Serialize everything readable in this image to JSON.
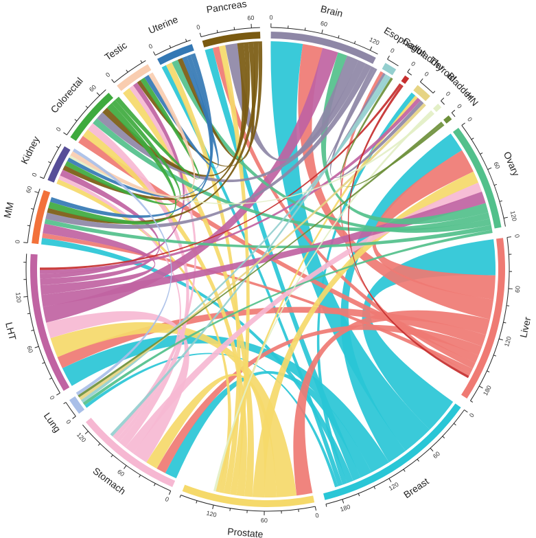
{
  "chart_data": {
    "type": "chord",
    "title": "",
    "tick_step": 20,
    "label_step": 60,
    "sectors": [
      {
        "name": "Pancreas",
        "total": 70,
        "color": "#7a5a10"
      },
      {
        "name": "Brain",
        "total": 130,
        "color": "#8e87a6"
      },
      {
        "name": "Esophagus",
        "total": 15,
        "color": "#94cfcf"
      },
      {
        "name": "Gallbladder",
        "total": 6,
        "color": "#c62e2e"
      },
      {
        "name": "Thyroid",
        "total": 20,
        "color": "#e6d484"
      },
      {
        "name": "Bladder",
        "total": 6,
        "color": "#e3efc6"
      },
      {
        "name": "HN",
        "total": 6,
        "color": "#6d8f3a"
      },
      {
        "name": "Ovary",
        "total": 130,
        "color": "#52c08b"
      },
      {
        "name": "Liver",
        "total": 200,
        "color": "#ef7a73"
      },
      {
        "name": "Breast",
        "total": 200,
        "color": "#29c6d6"
      },
      {
        "name": "Prostate",
        "total": 160,
        "color": "#f5d96a"
      },
      {
        "name": "Stomach",
        "total": 130,
        "color": "#f6b8d2"
      },
      {
        "name": "Lung",
        "total": 20,
        "color": "#a9bfe8"
      },
      {
        "name": "LHT",
        "total": 170,
        "color": "#c063a2"
      },
      {
        "name": "MM",
        "total": 65,
        "color": "#f2713a"
      },
      {
        "name": "Kidney",
        "total": 45,
        "color": "#574e98"
      },
      {
        "name": "Colorectal",
        "total": 70,
        "color": "#3eaa3e"
      },
      {
        "name": "Testic",
        "total": 45,
        "color": "#f9cdb0"
      },
      {
        "name": "Uterine",
        "total": 45,
        "color": "#3478b4"
      }
    ],
    "links": [
      {
        "source": "Breast",
        "target": "Liver",
        "value": 45
      },
      {
        "source": "Breast",
        "target": "Brain",
        "value": 40
      },
      {
        "source": "Breast",
        "target": "Ovary",
        "value": 25
      },
      {
        "source": "Breast",
        "target": "LHT",
        "value": 25
      },
      {
        "source": "Breast",
        "target": "Stomach",
        "value": 15
      },
      {
        "source": "Breast",
        "target": "Pancreas",
        "value": 10
      },
      {
        "source": "Breast",
        "target": "MM",
        "value": 8
      },
      {
        "source": "Breast",
        "target": "Thyroid",
        "value": 6
      },
      {
        "source": "Breast",
        "target": "Uterine",
        "value": 6
      },
      {
        "source": "Breast",
        "target": "Lung",
        "value": 4
      },
      {
        "source": "Liver",
        "target": "Ovary",
        "value": 30
      },
      {
        "source": "Liver",
        "target": "Brain",
        "value": 25
      },
      {
        "source": "Liver",
        "target": "Prostate",
        "value": 20
      },
      {
        "source": "Liver",
        "target": "LHT",
        "value": 15
      },
      {
        "source": "Liver",
        "target": "Stomach",
        "value": 12
      },
      {
        "source": "Liver",
        "target": "Colorectal",
        "value": 10
      },
      {
        "source": "Liver",
        "target": "Pancreas",
        "value": 8
      },
      {
        "source": "Liver",
        "target": "MM",
        "value": 6
      },
      {
        "source": "Liver",
        "target": "Esophagus",
        "value": 4
      },
      {
        "source": "Prostate",
        "target": "LHT",
        "value": 25
      },
      {
        "source": "Prostate",
        "target": "Stomach",
        "value": 15
      },
      {
        "source": "Prostate",
        "target": "Ovary",
        "value": 15
      },
      {
        "source": "Prostate",
        "target": "Testic",
        "value": 10
      },
      {
        "source": "Prostate",
        "target": "Colorectal",
        "value": 10
      },
      {
        "source": "Prostate",
        "target": "Pancreas",
        "value": 8
      },
      {
        "source": "Prostate",
        "target": "Uterine",
        "value": 8
      },
      {
        "source": "Prostate",
        "target": "Kidney",
        "value": 6
      },
      {
        "source": "Prostate",
        "target": "Thyroid",
        "value": 4
      },
      {
        "source": "Stomach",
        "target": "LHT",
        "value": 20
      },
      {
        "source": "Stomach",
        "target": "Ovary",
        "value": 12
      },
      {
        "source": "Stomach",
        "target": "Colorectal",
        "value": 10
      },
      {
        "source": "Stomach",
        "target": "Kidney",
        "value": 5
      },
      {
        "source": "Stomach",
        "target": "Testic",
        "value": 6
      },
      {
        "source": "LHT",
        "target": "Brain",
        "value": 20
      },
      {
        "source": "LHT",
        "target": "Ovary",
        "value": 15
      },
      {
        "source": "LHT",
        "target": "MM",
        "value": 12
      },
      {
        "source": "LHT",
        "target": "Kidney",
        "value": 8
      },
      {
        "source": "LHT",
        "target": "Testic",
        "value": 6
      },
      {
        "source": "LHT",
        "target": "Thyroid",
        "value": 5
      },
      {
        "source": "Ovary",
        "target": "Brain",
        "value": 12
      },
      {
        "source": "Ovary",
        "target": "Colorectal",
        "value": 8
      },
      {
        "source": "Ovary",
        "target": "Uterine",
        "value": 8
      },
      {
        "source": "Ovary",
        "target": "MM",
        "value": 6
      },
      {
        "source": "Ovary",
        "target": "Lung",
        "value": 4
      },
      {
        "source": "Brain",
        "target": "Pancreas",
        "value": 15
      },
      {
        "source": "Brain",
        "target": "Colorectal",
        "value": 10
      },
      {
        "source": "Brain",
        "target": "MM",
        "value": 8
      },
      {
        "source": "Brain",
        "target": "Thyroid",
        "value": 5
      },
      {
        "source": "Brain",
        "target": "Esophagus",
        "value": 3
      },
      {
        "source": "Pancreas",
        "target": "Colorectal",
        "value": 8
      },
      {
        "source": "Pancreas",
        "target": "Kidney",
        "value": 6
      },
      {
        "source": "Pancreas",
        "target": "Uterine",
        "value": 6
      },
      {
        "source": "Pancreas",
        "target": "MM",
        "value": 6
      },
      {
        "source": "Pancreas",
        "target": "Testic",
        "value": 5
      },
      {
        "source": "Colorectal",
        "target": "MM",
        "value": 8
      },
      {
        "source": "Colorectal",
        "target": "Kidney",
        "value": 6
      },
      {
        "source": "Colorectal",
        "target": "Testic",
        "value": 6
      },
      {
        "source": "Uterine",
        "target": "Testic",
        "value": 6
      },
      {
        "source": "Uterine",
        "target": "Kidney",
        "value": 5
      },
      {
        "source": "Uterine",
        "target": "MM",
        "value": 6
      },
      {
        "source": "Esophagus",
        "target": "Stomach",
        "value": 4
      },
      {
        "source": "Esophagus",
        "target": "Lung",
        "value": 4
      },
      {
        "source": "Thyroid",
        "target": "Lung",
        "value": 4
      },
      {
        "source": "Gallbladder",
        "target": "LHT",
        "value": 3
      },
      {
        "source": "Gallbladder",
        "target": "Liver",
        "value": 3
      },
      {
        "source": "Bladder",
        "target": "Prostate",
        "value": 3
      },
      {
        "source": "Bladder",
        "target": "Kidney",
        "value": 3
      },
      {
        "source": "HN",
        "target": "Lung",
        "value": 3
      },
      {
        "source": "HN",
        "target": "Esophagus",
        "value": 3
      },
      {
        "source": "Testic",
        "target": "Kidney",
        "value": 6
      },
      {
        "source": "Lung",
        "target": "Kidney",
        "value": 4
      }
    ]
  }
}
